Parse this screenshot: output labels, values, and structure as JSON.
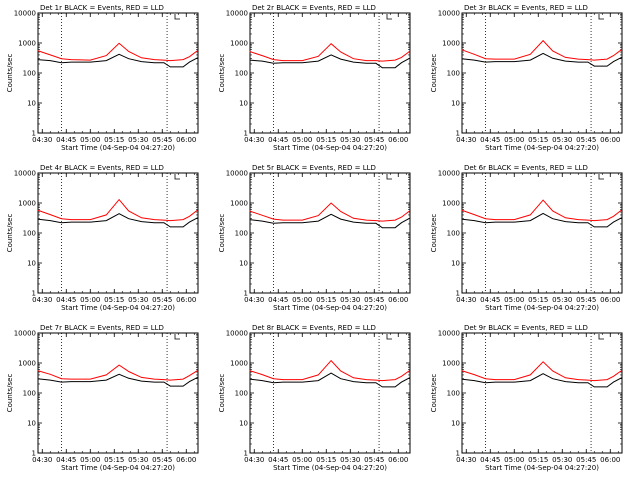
{
  "chart_data": [
    {
      "type": "line",
      "title": "Det 1r BLACK = Events, RED = LLD",
      "xlabel": "Start Time (04-Sep-04 04:27:20)",
      "ylabel": "Counts/sec",
      "x_ticks": [
        "04:30",
        "04:45",
        "05:00",
        "05:15",
        "05:30",
        "05:45",
        "06:00"
      ],
      "y_ticks": [
        "1",
        "10",
        "100",
        "1000",
        "10000"
      ],
      "y_scale": "log",
      "ylim": [
        1,
        10000
      ],
      "xlim": [
        "04:27:20",
        "06:07:20"
      ],
      "marker_lines": [
        "04:42",
        "05:48"
      ],
      "series": [
        {
          "name": "Events",
          "color": "#000000",
          "x": [
            "04:27",
            "04:35",
            "04:42",
            "04:48",
            "05:00",
            "05:10",
            "05:18",
            "05:24",
            "05:32",
            "05:40",
            "05:46",
            "05:50",
            "05:58",
            "06:02",
            "06:07"
          ],
          "values": [
            280,
            260,
            220,
            230,
            230,
            260,
            420,
            300,
            240,
            220,
            220,
            160,
            160,
            230,
            320
          ]
        },
        {
          "name": "LLD",
          "color": "#ff0000",
          "x": [
            "04:27",
            "04:35",
            "04:42",
            "04:48",
            "05:00",
            "05:10",
            "05:18",
            "05:24",
            "05:32",
            "05:40",
            "05:46",
            "05:50",
            "05:58",
            "06:02",
            "06:07"
          ],
          "values": [
            560,
            400,
            300,
            280,
            270,
            380,
            980,
            520,
            320,
            280,
            270,
            260,
            280,
            350,
            560
          ]
        }
      ]
    },
    {
      "type": "line",
      "title": "Det 2r BLACK = Events, RED = LLD",
      "xlabel": "Start Time (04-Sep-04 04:27:20)",
      "ylabel": "Counts/sec",
      "x_ticks": [
        "04:30",
        "04:45",
        "05:00",
        "05:15",
        "05:30",
        "05:45",
        "06:00"
      ],
      "y_ticks": [
        "1",
        "10",
        "100",
        "1000",
        "10000"
      ],
      "y_scale": "log",
      "ylim": [
        1,
        10000
      ],
      "xlim": [
        "04:27:20",
        "06:07:20"
      ],
      "marker_lines": [
        "04:42",
        "05:48"
      ],
      "series": [
        {
          "name": "Events",
          "color": "#000000",
          "x": [
            "04:27",
            "04:35",
            "04:42",
            "04:48",
            "05:00",
            "05:10",
            "05:18",
            "05:24",
            "05:32",
            "05:40",
            "05:46",
            "05:50",
            "05:58",
            "06:02",
            "06:07"
          ],
          "values": [
            270,
            250,
            210,
            220,
            220,
            250,
            400,
            290,
            230,
            210,
            210,
            150,
            150,
            220,
            310
          ]
        },
        {
          "name": "LLD",
          "color": "#ff0000",
          "x": [
            "04:27",
            "04:35",
            "04:42",
            "04:48",
            "05:00",
            "05:10",
            "05:18",
            "05:24",
            "05:32",
            "05:40",
            "05:46",
            "05:50",
            "05:58",
            "06:02",
            "06:07"
          ],
          "values": [
            520,
            380,
            280,
            260,
            260,
            360,
            950,
            500,
            300,
            260,
            260,
            250,
            270,
            330,
            520
          ]
        }
      ]
    },
    {
      "type": "line",
      "title": "Det 3r BLACK = Events, RED = LLD",
      "xlabel": "Start Time (04-Sep-04 04:27:20)",
      "ylabel": "Counts/sec",
      "x_ticks": [
        "04:30",
        "04:45",
        "05:00",
        "05:15",
        "05:30",
        "05:45",
        "06:00"
      ],
      "y_ticks": [
        "1",
        "10",
        "100",
        "1000",
        "10000"
      ],
      "y_scale": "log",
      "ylim": [
        1,
        10000
      ],
      "xlim": [
        "04:27:20",
        "06:07:20"
      ],
      "marker_lines": [
        "04:42",
        "05:48"
      ],
      "series": [
        {
          "name": "Events",
          "color": "#000000",
          "x": [
            "04:27",
            "04:35",
            "04:42",
            "04:48",
            "05:00",
            "05:10",
            "05:18",
            "05:24",
            "05:32",
            "05:40",
            "05:46",
            "05:50",
            "05:58",
            "06:02",
            "06:07"
          ],
          "values": [
            300,
            270,
            230,
            240,
            240,
            270,
            450,
            310,
            250,
            230,
            230,
            170,
            170,
            240,
            330
          ]
        },
        {
          "name": "LLD",
          "color": "#ff0000",
          "x": [
            "04:27",
            "04:35",
            "04:42",
            "04:48",
            "05:00",
            "05:10",
            "05:18",
            "05:24",
            "05:32",
            "05:40",
            "05:46",
            "05:50",
            "05:58",
            "06:02",
            "06:07"
          ],
          "values": [
            600,
            420,
            300,
            290,
            290,
            420,
            1200,
            540,
            330,
            290,
            280,
            270,
            290,
            380,
            600
          ]
        }
      ]
    },
    {
      "type": "line",
      "title": "Det 4r BLACK = Events, RED = LLD",
      "xlabel": "Start Time (04-Sep-04 04:27:20)",
      "ylabel": "Counts/sec",
      "x_ticks": [
        "04:30",
        "04:45",
        "05:00",
        "05:15",
        "05:30",
        "05:45",
        "06:00"
      ],
      "y_ticks": [
        "1",
        "10",
        "100",
        "1000",
        "10000"
      ],
      "y_scale": "log",
      "ylim": [
        1,
        10000
      ],
      "xlim": [
        "04:27:20",
        "06:07:20"
      ],
      "marker_lines": [
        "04:42",
        "05:48"
      ],
      "series": [
        {
          "name": "Events",
          "color": "#000000",
          "x": [
            "04:27",
            "04:35",
            "04:42",
            "04:48",
            "05:00",
            "05:10",
            "05:18",
            "05:24",
            "05:32",
            "05:40",
            "05:46",
            "05:50",
            "05:58",
            "06:02",
            "06:07"
          ],
          "values": [
            290,
            260,
            220,
            230,
            230,
            260,
            440,
            300,
            240,
            220,
            220,
            160,
            160,
            230,
            320
          ]
        },
        {
          "name": "LLD",
          "color": "#ff0000",
          "x": [
            "04:27",
            "04:35",
            "04:42",
            "04:48",
            "05:00",
            "05:10",
            "05:18",
            "05:24",
            "05:32",
            "05:40",
            "05:46",
            "05:50",
            "05:58",
            "06:02",
            "06:07"
          ],
          "values": [
            580,
            410,
            300,
            280,
            280,
            400,
            1300,
            540,
            320,
            280,
            270,
            260,
            280,
            360,
            580
          ]
        }
      ]
    },
    {
      "type": "line",
      "title": "Det 5r BLACK = Events, RED = LLD",
      "xlabel": "Start Time (04-Sep-04 04:27:20)",
      "ylabel": "Counts/sec",
      "x_ticks": [
        "04:30",
        "04:45",
        "05:00",
        "05:15",
        "05:30",
        "05:45",
        "06:00"
      ],
      "y_ticks": [
        "1",
        "10",
        "100",
        "1000",
        "10000"
      ],
      "y_scale": "log",
      "ylim": [
        1,
        10000
      ],
      "xlim": [
        "04:27:20",
        "06:07:20"
      ],
      "marker_lines": [
        "04:42",
        "05:48"
      ],
      "series": [
        {
          "name": "Events",
          "color": "#000000",
          "x": [
            "04:27",
            "04:35",
            "04:42",
            "04:48",
            "05:00",
            "05:10",
            "05:18",
            "05:24",
            "05:32",
            "05:40",
            "05:46",
            "05:50",
            "05:58",
            "06:02",
            "06:07"
          ],
          "values": [
            280,
            250,
            210,
            220,
            220,
            250,
            420,
            290,
            230,
            210,
            210,
            150,
            150,
            220,
            310
          ]
        },
        {
          "name": "LLD",
          "color": "#ff0000",
          "x": [
            "04:27",
            "04:35",
            "04:42",
            "04:48",
            "05:00",
            "05:10",
            "05:18",
            "05:24",
            "05:32",
            "05:40",
            "05:46",
            "05:50",
            "05:58",
            "06:02",
            "06:07"
          ],
          "values": [
            540,
            390,
            290,
            270,
            270,
            380,
            1000,
            520,
            310,
            270,
            260,
            250,
            270,
            340,
            540
          ]
        }
      ]
    },
    {
      "type": "line",
      "title": "Det 6r BLACK = Events, RED = LLD",
      "xlabel": "Start Time (04-Sep-04 04:27:20)",
      "ylabel": "Counts/sec",
      "x_ticks": [
        "04:30",
        "04:45",
        "05:00",
        "05:15",
        "05:30",
        "05:45",
        "06:00"
      ],
      "y_ticks": [
        "1",
        "10",
        "100",
        "1000",
        "10000"
      ],
      "y_scale": "log",
      "ylim": [
        1,
        10000
      ],
      "xlim": [
        "04:27:20",
        "06:07:20"
      ],
      "marker_lines": [
        "04:42",
        "05:48"
      ],
      "series": [
        {
          "name": "Events",
          "color": "#000000",
          "x": [
            "04:27",
            "04:35",
            "04:42",
            "04:48",
            "05:00",
            "05:10",
            "05:18",
            "05:24",
            "05:32",
            "05:40",
            "05:46",
            "05:50",
            "05:58",
            "06:02",
            "06:07"
          ],
          "values": [
            290,
            260,
            220,
            230,
            230,
            260,
            450,
            300,
            240,
            220,
            220,
            160,
            160,
            230,
            320
          ]
        },
        {
          "name": "LLD",
          "color": "#ff0000",
          "x": [
            "04:27",
            "04:35",
            "04:42",
            "04:48",
            "05:00",
            "05:10",
            "05:18",
            "05:24",
            "05:32",
            "05:40",
            "05:46",
            "05:50",
            "05:58",
            "06:02",
            "06:07"
          ],
          "values": [
            580,
            410,
            300,
            280,
            280,
            400,
            1250,
            540,
            320,
            280,
            270,
            260,
            280,
            360,
            580
          ]
        }
      ]
    },
    {
      "type": "line",
      "title": "Det 7r BLACK = Events, RED = LLD",
      "xlabel": "Start Time (04-Sep-04 04:27:20)",
      "ylabel": "Counts/sec",
      "x_ticks": [
        "04:30",
        "04:45",
        "05:00",
        "05:15",
        "05:30",
        "05:45",
        "06:00"
      ],
      "y_ticks": [
        "1",
        "10",
        "100",
        "1000",
        "10000"
      ],
      "y_scale": "log",
      "ylim": [
        1,
        10000
      ],
      "xlim": [
        "04:27:20",
        "06:07:20"
      ],
      "marker_lines": [
        "04:42",
        "05:48"
      ],
      "series": [
        {
          "name": "Events",
          "color": "#000000",
          "x": [
            "04:27",
            "04:35",
            "04:42",
            "04:48",
            "05:00",
            "05:10",
            "05:18",
            "05:24",
            "05:32",
            "05:40",
            "05:46",
            "05:50",
            "05:58",
            "06:02",
            "06:07"
          ],
          "values": [
            300,
            270,
            230,
            240,
            240,
            270,
            420,
            310,
            250,
            230,
            230,
            170,
            170,
            240,
            330
          ]
        },
        {
          "name": "LLD",
          "color": "#ff0000",
          "x": [
            "04:27",
            "04:35",
            "04:42",
            "04:48",
            "05:00",
            "05:10",
            "05:18",
            "05:24",
            "05:32",
            "05:40",
            "05:46",
            "05:50",
            "05:58",
            "06:02",
            "06:07"
          ],
          "values": [
            560,
            420,
            300,
            290,
            290,
            400,
            850,
            520,
            330,
            290,
            280,
            270,
            290,
            380,
            560
          ]
        }
      ]
    },
    {
      "type": "line",
      "title": "Det 8r BLACK = Events, RED = LLD",
      "xlabel": "Start Time (04-Sep-04 04:27:20)",
      "ylabel": "Counts/sec",
      "x_ticks": [
        "04:30",
        "04:45",
        "05:00",
        "05:15",
        "05:30",
        "05:45",
        "06:00"
      ],
      "y_ticks": [
        "1",
        "10",
        "100",
        "1000",
        "10000"
      ],
      "y_scale": "log",
      "ylim": [
        1,
        10000
      ],
      "xlim": [
        "04:27:20",
        "06:07:20"
      ],
      "marker_lines": [
        "04:42",
        "05:48"
      ],
      "series": [
        {
          "name": "Events",
          "color": "#000000",
          "x": [
            "04:27",
            "04:35",
            "04:42",
            "04:48",
            "05:00",
            "05:10",
            "05:18",
            "05:24",
            "05:32",
            "05:40",
            "05:46",
            "05:50",
            "05:58",
            "06:02",
            "06:07"
          ],
          "values": [
            290,
            260,
            220,
            230,
            230,
            260,
            460,
            300,
            240,
            220,
            220,
            160,
            160,
            230,
            320
          ]
        },
        {
          "name": "LLD",
          "color": "#ff0000",
          "x": [
            "04:27",
            "04:35",
            "04:42",
            "04:48",
            "05:00",
            "05:10",
            "05:18",
            "05:24",
            "05:32",
            "05:40",
            "05:46",
            "05:50",
            "05:58",
            "06:02",
            "06:07"
          ],
          "values": [
            560,
            410,
            300,
            280,
            280,
            400,
            1200,
            540,
            320,
            280,
            270,
            260,
            280,
            360,
            560
          ]
        }
      ]
    },
    {
      "type": "line",
      "title": "Det 9r BLACK = Events, RED = LLD",
      "xlabel": "Start Time (04-Sep-04 04:27:20)",
      "ylabel": "Counts/sec",
      "x_ticks": [
        "04:30",
        "04:45",
        "05:00",
        "05:15",
        "05:30",
        "05:45",
        "06:00"
      ],
      "y_ticks": [
        "1",
        "10",
        "100",
        "1000",
        "10000"
      ],
      "y_scale": "log",
      "ylim": [
        1,
        10000
      ],
      "xlim": [
        "04:27:20",
        "06:07:20"
      ],
      "marker_lines": [
        "04:42",
        "05:48"
      ],
      "series": [
        {
          "name": "Events",
          "color": "#000000",
          "x": [
            "04:27",
            "04:35",
            "04:42",
            "04:48",
            "05:00",
            "05:10",
            "05:18",
            "05:24",
            "05:32",
            "05:40",
            "05:46",
            "05:50",
            "05:58",
            "06:02",
            "06:07"
          ],
          "values": [
            290,
            260,
            220,
            230,
            230,
            260,
            440,
            300,
            240,
            220,
            220,
            160,
            160,
            230,
            320
          ]
        },
        {
          "name": "LLD",
          "color": "#ff0000",
          "x": [
            "04:27",
            "04:35",
            "04:42",
            "04:48",
            "05:00",
            "05:10",
            "05:18",
            "05:24",
            "05:32",
            "05:40",
            "05:46",
            "05:50",
            "05:58",
            "06:02",
            "06:07"
          ],
          "values": [
            560,
            410,
            300,
            280,
            280,
            400,
            1100,
            540,
            320,
            280,
            270,
            260,
            280,
            360,
            560
          ]
        }
      ]
    }
  ]
}
